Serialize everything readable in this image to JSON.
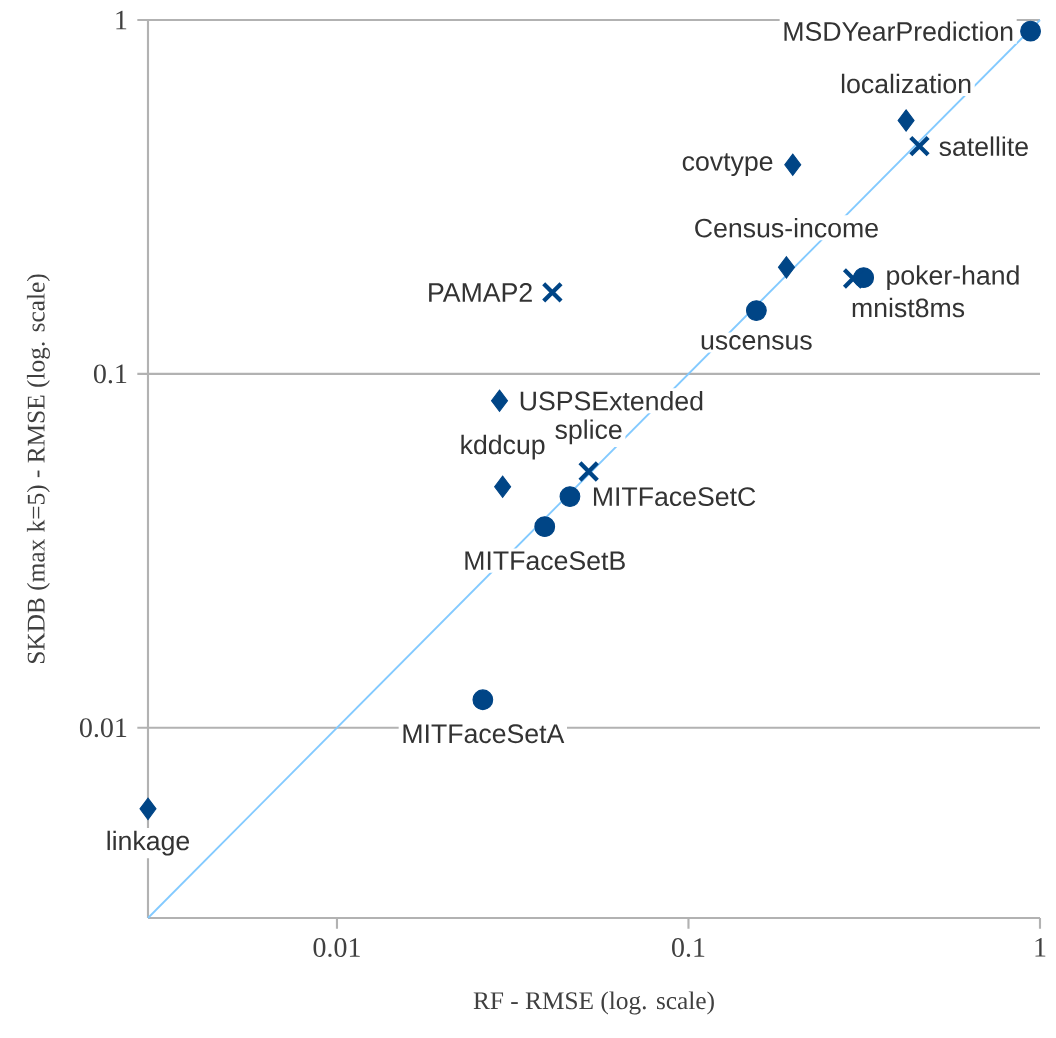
{
  "chart_data": {
    "type": "scatter",
    "xlabel": "RF - RMSE (log. scale)",
    "ylabel": "SKDB (max k=5) - RMSE (log. scale)",
    "log": "xy",
    "grid": "y",
    "xlim": [
      0.0029,
      1
    ],
    "ylim": [
      0.0029,
      1
    ],
    "xticks": [
      0.01,
      0.1,
      1
    ],
    "yticks": [
      0.01,
      0.1,
      1
    ],
    "series": [
      {
        "type": "line",
        "color": "#83caff",
        "x": [
          0.0029,
          1
        ],
        "values": [
          0.0029,
          1
        ],
        "marker": "none"
      },
      {
        "color": "#004586",
        "marker": "circle",
        "x": [
          0.94,
          0.315,
          0.156,
          0.046,
          0.039,
          0.026
        ],
        "values": [
          0.93,
          0.187,
          0.151,
          0.045,
          0.037,
          0.012
        ]
      },
      {
        "color": "#004586",
        "marker": "diamond",
        "x": [
          0.416,
          0.198,
          0.19,
          0.029,
          0.0296,
          0.0029
        ],
        "values": [
          0.52,
          0.39,
          0.2,
          0.084,
          0.048,
          0.0059
        ]
      },
      {
        "color": "#004586",
        "marker": "cross",
        "x": [
          0.454,
          0.041,
          0.294,
          0.052
        ],
        "values": [
          0.44,
          0.17,
          0.186,
          0.053
        ]
      }
    ],
    "annotations": [
      {
        "text": "MSDYearPrediction",
        "x": 0.94,
        "y": 0.93
      },
      {
        "text": "poker-hand",
        "x": 0.315,
        "y": 0.187
      },
      {
        "text": "uscensus",
        "x": 0.156,
        "y": 0.151
      },
      {
        "text": "MITFaceSetC",
        "x": 0.046,
        "y": 0.045
      },
      {
        "text": "MITFaceSetB",
        "x": 0.039,
        "y": 0.037
      },
      {
        "text": "MITFaceSetA",
        "x": 0.026,
        "y": 0.012
      },
      {
        "text": "localization",
        "x": 0.416,
        "y": 0.52
      },
      {
        "text": "covtype",
        "x": 0.198,
        "y": 0.39
      },
      {
        "text": "Census-income",
        "x": 0.19,
        "y": 0.2
      },
      {
        "text": "USPSExtended",
        "x": 0.029,
        "y": 0.084
      },
      {
        "text": "kddcup",
        "x": 0.0296,
        "y": 0.048
      },
      {
        "text": "linkage",
        "x": 0.0029,
        "y": 0.0059
      },
      {
        "text": "satellite",
        "x": 0.454,
        "y": 0.44
      },
      {
        "text": "PAMAP2",
        "x": 0.041,
        "y": 0.17
      },
      {
        "text": "mnist8ms",
        "x": 0.294,
        "y": 0.186
      },
      {
        "text": "splice",
        "x": 0.052,
        "y": 0.053
      }
    ]
  }
}
